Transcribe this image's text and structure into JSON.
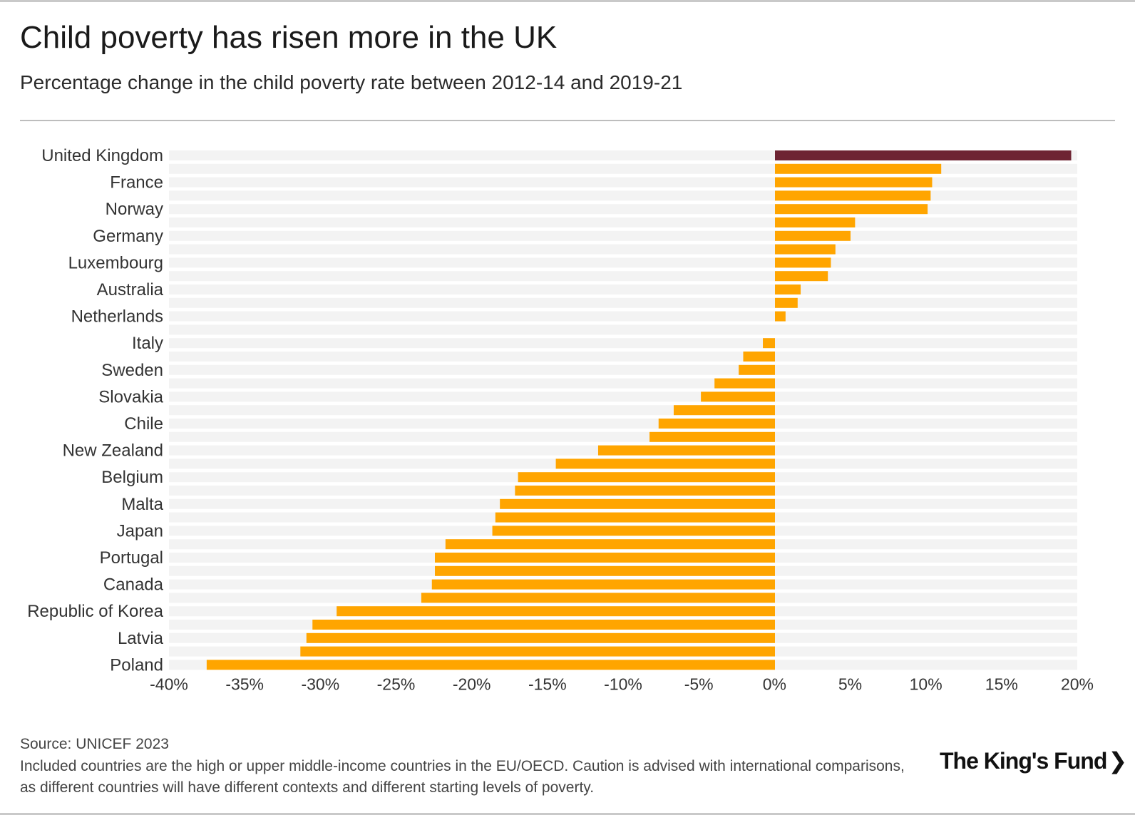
{
  "header": {
    "title": "Child poverty has risen more in the UK",
    "subtitle": "Percentage change in the child poverty rate between 2012-14 and 2019-21"
  },
  "footer": {
    "source": "Source: UNICEF 2023",
    "note": "Included countries are the high or upper middle-income countries in the EU/OECD. Caution is advised with international comparisons, as different countries will have different contexts and different starting levels of poverty.",
    "logo_text": "The King's Fund",
    "logo_chevron": "❯"
  },
  "colors": {
    "highlight": "#6e2433",
    "bar": "#ffa500",
    "row_band": "#f3f3f3"
  },
  "chart_data": {
    "type": "bar",
    "orientation": "horizontal",
    "title": "Child poverty has risen more in the UK",
    "xlabel": "",
    "ylabel": "",
    "xlim": [
      -40,
      20
    ],
    "x_ticks": [
      -40,
      -35,
      -30,
      -25,
      -20,
      -15,
      -10,
      -5,
      0,
      5,
      10,
      15,
      20
    ],
    "x_tick_labels": [
      "-40%",
      "-35%",
      "-30%",
      "-25%",
      "-20%",
      "-15%",
      "-10%",
      "-5%",
      "0%",
      "5%",
      "10%",
      "15%",
      "20%"
    ],
    "highlight_index": 0,
    "bars": [
      {
        "label": "United Kingdom",
        "value": 19.6
      },
      {
        "label": "",
        "value": 11.0
      },
      {
        "label": "France",
        "value": 10.4
      },
      {
        "label": "",
        "value": 10.3
      },
      {
        "label": "Norway",
        "value": 10.1
      },
      {
        "label": "",
        "value": 5.3
      },
      {
        "label": "Germany",
        "value": 5.0
      },
      {
        "label": "",
        "value": 4.0
      },
      {
        "label": "Luxembourg",
        "value": 3.7
      },
      {
        "label": "",
        "value": 3.5
      },
      {
        "label": "Australia",
        "value": 1.7
      },
      {
        "label": "",
        "value": 1.5
      },
      {
        "label": "Netherlands",
        "value": 0.7
      },
      {
        "label": "",
        "value": 0.0
      },
      {
        "label": "Italy",
        "value": -0.8
      },
      {
        "label": "",
        "value": -2.1
      },
      {
        "label": "Sweden",
        "value": -2.4
      },
      {
        "label": "",
        "value": -4.0
      },
      {
        "label": "Slovakia",
        "value": -4.9
      },
      {
        "label": "",
        "value": -6.7
      },
      {
        "label": "Chile",
        "value": -7.7
      },
      {
        "label": "",
        "value": -8.3
      },
      {
        "label": "New Zealand",
        "value": -11.7
      },
      {
        "label": "",
        "value": -14.5
      },
      {
        "label": "Belgium",
        "value": -17.0
      },
      {
        "label": "",
        "value": -17.2
      },
      {
        "label": "Malta",
        "value": -18.2
      },
      {
        "label": "",
        "value": -18.5
      },
      {
        "label": "Japan",
        "value": -18.7
      },
      {
        "label": "",
        "value": -21.8
      },
      {
        "label": "Portugal",
        "value": -22.5
      },
      {
        "label": "",
        "value": -22.5
      },
      {
        "label": "Canada",
        "value": -22.7
      },
      {
        "label": "",
        "value": -23.4
      },
      {
        "label": "Republic of Korea",
        "value": -29.0
      },
      {
        "label": "",
        "value": -30.6
      },
      {
        "label": "Latvia",
        "value": -31.0
      },
      {
        "label": "",
        "value": -31.4
      },
      {
        "label": "Poland",
        "value": -37.6
      }
    ]
  }
}
